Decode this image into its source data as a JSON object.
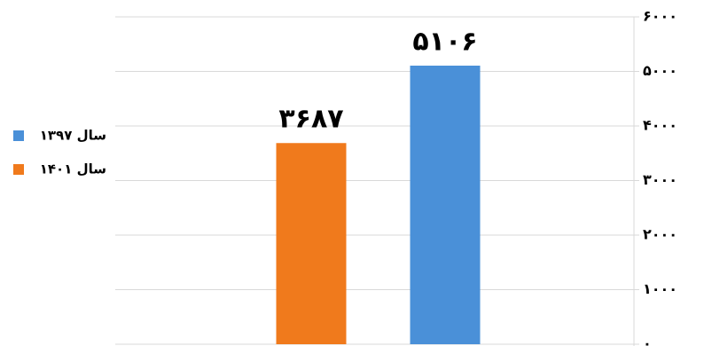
{
  "chart_data": {
    "type": "bar",
    "series": [
      {
        "name": "سال ۱۳۹۷",
        "color": "#4a90d8",
        "values": [
          5106
        ],
        "value_labels": [
          "۵۱۰۶"
        ]
      },
      {
        "name": "سال ۱۴۰۱",
        "color": "#f07a1c",
        "values": [
          3687
        ],
        "value_labels": [
          "۳۶۸۷"
        ]
      }
    ],
    "ylim": [
      0,
      6000
    ],
    "yticks": [
      {
        "value": 0,
        "label": "۰"
      },
      {
        "value": 1000,
        "label": "۱۰۰۰"
      },
      {
        "value": 2000,
        "label": "۲۰۰۰"
      },
      {
        "value": 3000,
        "label": "۳۰۰۰"
      },
      {
        "value": 4000,
        "label": "۴۰۰۰"
      },
      {
        "value": 5000,
        "label": "۵۰۰۰"
      },
      {
        "value": 6000,
        "label": "۶۰۰۰"
      }
    ],
    "grid": true,
    "legend": "left"
  }
}
